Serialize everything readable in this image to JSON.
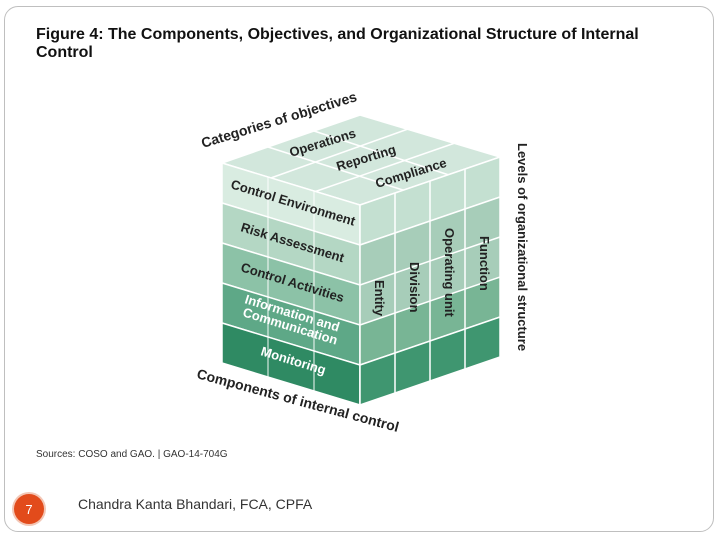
{
  "figure": {
    "title": "Figure 4: The Components, Objectives, and Organizational Structure of Internal Control",
    "sources": "Sources: COSO and GAO. | GAO-14-704G"
  },
  "cube": {
    "top_label": "Categories of objectives",
    "objectives": [
      "Operations",
      "Reporting",
      "Compliance"
    ],
    "bottom_label": "Components of internal control",
    "components": [
      "Control Environment",
      "Risk Assessment",
      "Control Activities",
      "Information and",
      "Communication",
      "Monitoring"
    ],
    "side_label": "Levels of organizational structure",
    "levels": [
      "Entity",
      "Division",
      "Operating unit",
      "Function"
    ],
    "colors": {
      "top_face": "#d2e7dc",
      "row1": "#d9ece1",
      "row2": "#b4d7c4",
      "row3": "#8cc2a7",
      "row4": "#5ea887",
      "row5": "#2f8a63",
      "side": "#a7cdb9"
    }
  },
  "footer": {
    "page_number": "7",
    "author": "Chandra Kanta Bhandari, FCA, CPFA"
  }
}
